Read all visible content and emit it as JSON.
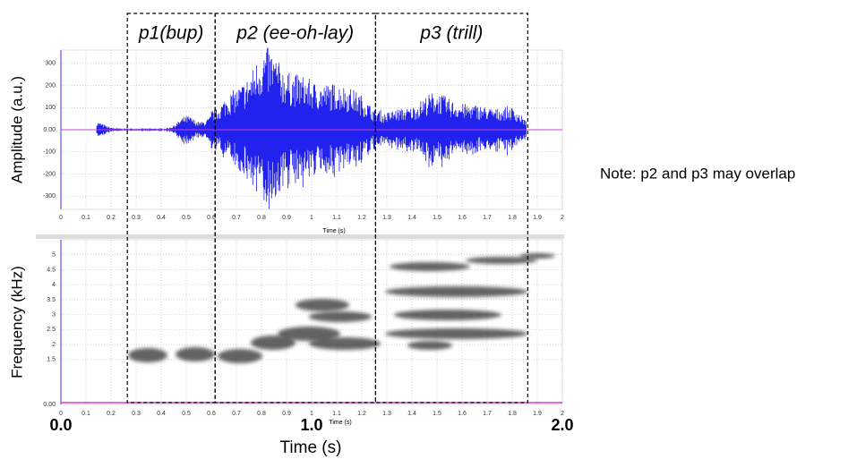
{
  "phases": [
    {
      "label": "p1(bup)",
      "start": 0.265,
      "end": 0.615
    },
    {
      "label": "p2 (ee-oh-lay)",
      "start": 0.615,
      "end": 1.255
    },
    {
      "label": "p3 (trill)",
      "start": 1.255,
      "end": 1.862
    }
  ],
  "waveform": {
    "y_label": "Amplitude (a.u.)",
    "x_label": "Time (s)",
    "xlim": [
      0,
      2
    ],
    "ylim": [
      -360,
      360
    ],
    "yticks": [
      300,
      200,
      100,
      {
        "value": 0,
        "label": "0.00"
      },
      -100,
      -200,
      -300
    ],
    "xticks": [
      0,
      0.1,
      0.2,
      0.3,
      0.4,
      0.5,
      0.6,
      0.7,
      0.8,
      0.9,
      1,
      1.1,
      1.2,
      1.3,
      1.4,
      1.5,
      1.6,
      1.7,
      1.8,
      1.9,
      2
    ]
  },
  "spectrogram": {
    "y_label": "Frequency (kHz)",
    "x_label": "Time (s)",
    "xlim": [
      0,
      2
    ],
    "ylim": [
      0,
      5.5
    ],
    "yticks": [
      5,
      4.5,
      4,
      3.5,
      3,
      2.5,
      2,
      1.5,
      {
        "value": 0,
        "label": "0.00"
      }
    ],
    "xticks": [
      0,
      0.1,
      0.2,
      0.3,
      0.4,
      0.5,
      0.6,
      0.7,
      0.8,
      0.9,
      1,
      1.1,
      1.2,
      1.3,
      1.4,
      1.5,
      1.6,
      1.7,
      1.8,
      1.9,
      2
    ]
  },
  "time_axis": {
    "label": "Time (s)",
    "ticks": [
      {
        "value": 0,
        "label": "0.0"
      },
      {
        "value": 1,
        "label": "1.0"
      },
      {
        "value": 2,
        "label": "2.0"
      }
    ]
  },
  "note": "Note: p2 and p3 may overlap"
}
